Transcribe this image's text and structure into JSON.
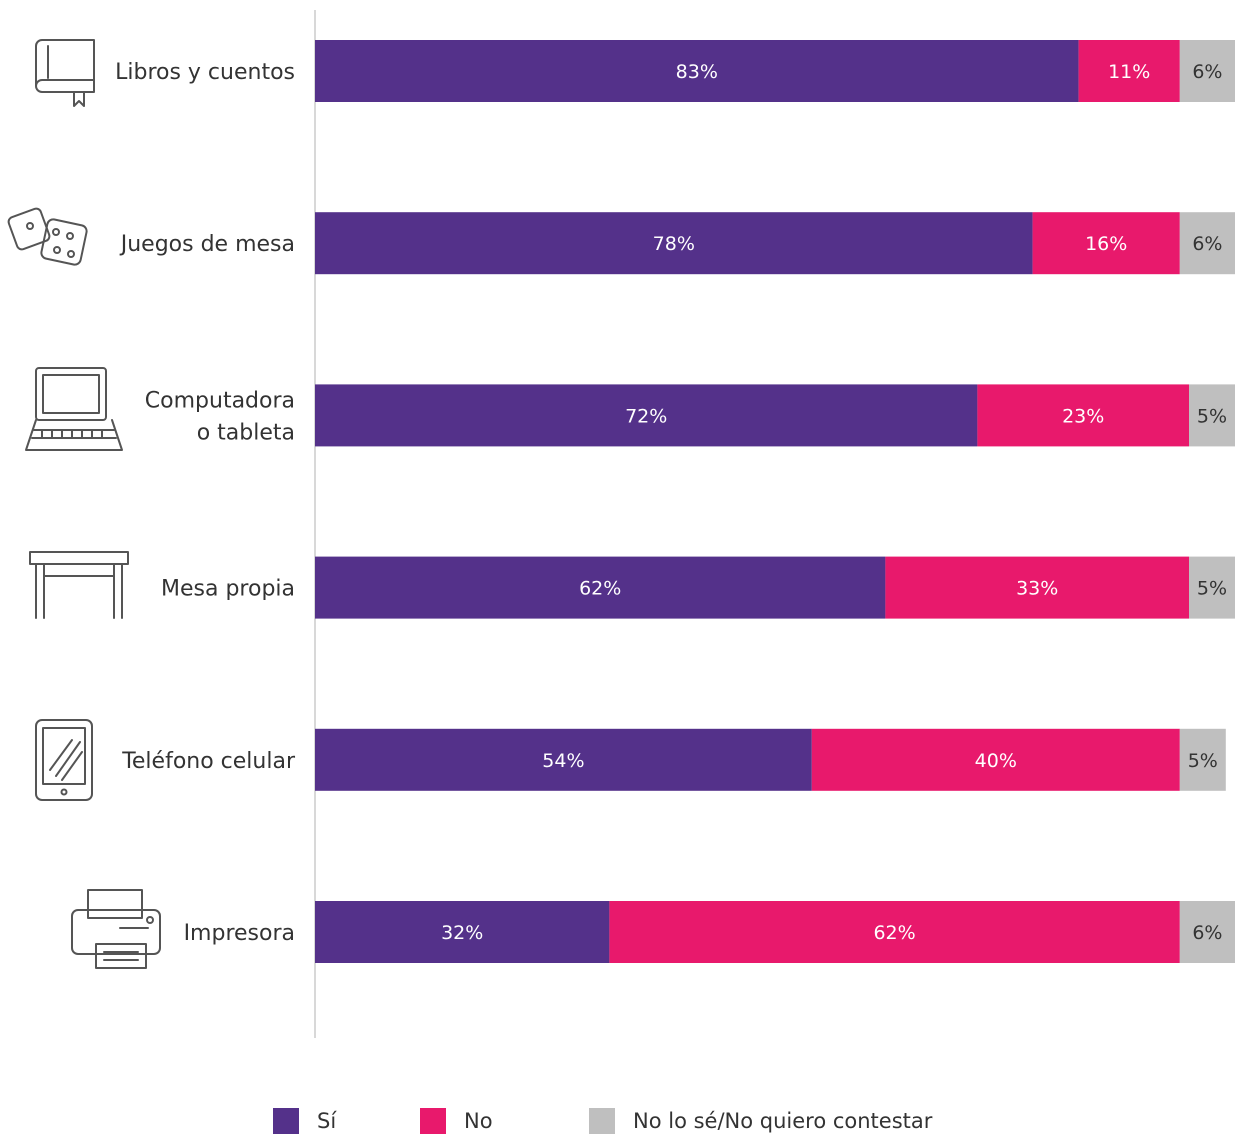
{
  "chart_data": {
    "type": "bar",
    "orientation": "horizontal",
    "stacked": true,
    "categories": [
      [
        "Libros y cuentos"
      ],
      [
        "Juegos de mesa"
      ],
      [
        "Computadora",
        "o tableta"
      ],
      [
        "Mesa propia"
      ],
      [
        "Teléfono celular"
      ],
      [
        "Impresora"
      ]
    ],
    "category_icons": [
      "book-icon",
      "dice-icon",
      "laptop-icon",
      "table-icon",
      "phone-icon",
      "printer-icon"
    ],
    "series": [
      {
        "name": "Sí",
        "color": "#54318a",
        "label_color": "#ffffff",
        "values": [
          83,
          78,
          72,
          62,
          54,
          32
        ],
        "labels": [
          "83%",
          "78%",
          "72%",
          "62%",
          "54%",
          "32%"
        ]
      },
      {
        "name": "No",
        "color": "#e8196c",
        "label_color": "#ffffff",
        "values": [
          11,
          16,
          23,
          33,
          40,
          62
        ],
        "labels": [
          "11%",
          "16%",
          "23%",
          "33%",
          "40%",
          "62%"
        ]
      },
      {
        "name": "No lo sé/No quiero contestar",
        "color": "#bfbfbf",
        "label_color": "#333333",
        "values": [
          6,
          6,
          5,
          5,
          5,
          6
        ],
        "labels": [
          "6%",
          "6%",
          "5%",
          "5%",
          "5%",
          "6%"
        ]
      }
    ],
    "xlim": [
      0,
      100
    ],
    "grid": false,
    "legend_position": "bottom"
  }
}
